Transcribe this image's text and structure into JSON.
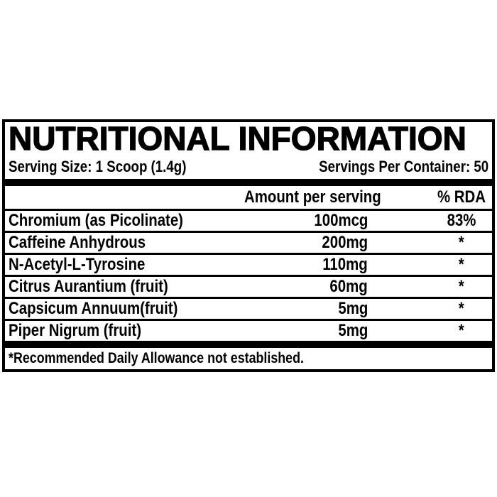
{
  "panel": {
    "title": "NUTRITIONAL INFORMATION",
    "serving_size": "Serving Size: 1 Scoop (1.4g)",
    "servings_per_container": "Servings Per Container: 50",
    "columns": {
      "amount": "Amount per serving",
      "rda": "% RDA"
    },
    "rows": [
      {
        "name": "Chromium (as Picolinate)",
        "amount": "100mcg",
        "rda": "83%"
      },
      {
        "name": "Caffeine Anhydrous",
        "amount": "200mg",
        "rda": "*"
      },
      {
        "name": "N-Acetyl-L-Tyrosine",
        "amount": "110mg",
        "rda": "*"
      },
      {
        "name": "Citrus Aurantium (fruit)",
        "amount": "60mg",
        "rda": "*"
      },
      {
        "name": "Capsicum Annuum(fruit)",
        "amount": "5mg",
        "rda": "*"
      },
      {
        "name": "Piper Nigrum (fruit)",
        "amount": "5mg",
        "rda": "*"
      }
    ],
    "footnote": "*Recommended Daily Allowance not established.",
    "colors": {
      "ink": "#000000",
      "background": "#ffffff"
    }
  }
}
